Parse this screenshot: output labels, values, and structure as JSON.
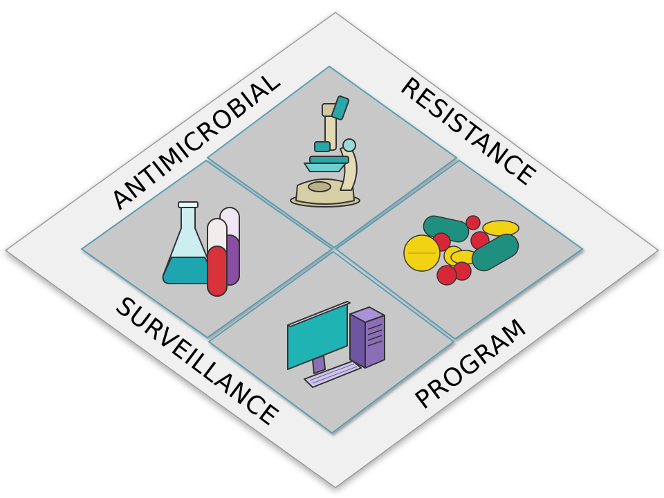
{
  "words": {
    "top_left": "ANTIMICROBIAL",
    "top_right": "RESISTANCE",
    "bottom_left": "SURVEILLANCE",
    "bottom_right": "PROGRAM"
  },
  "panels": [
    {
      "icon": "microscope-icon"
    },
    {
      "icon": "lab-glassware-icon"
    },
    {
      "icon": "medicine-pills-icon"
    },
    {
      "icon": "computer-workstation-icon"
    }
  ],
  "colors": {
    "frame": "#f0f0f0",
    "panel": "#c8c8c8",
    "panel_border": "#5a9fb5",
    "teal": "#1fb3b3",
    "red": "#d9273a",
    "yellow": "#f2d314",
    "purple": "#8a6fb8"
  }
}
